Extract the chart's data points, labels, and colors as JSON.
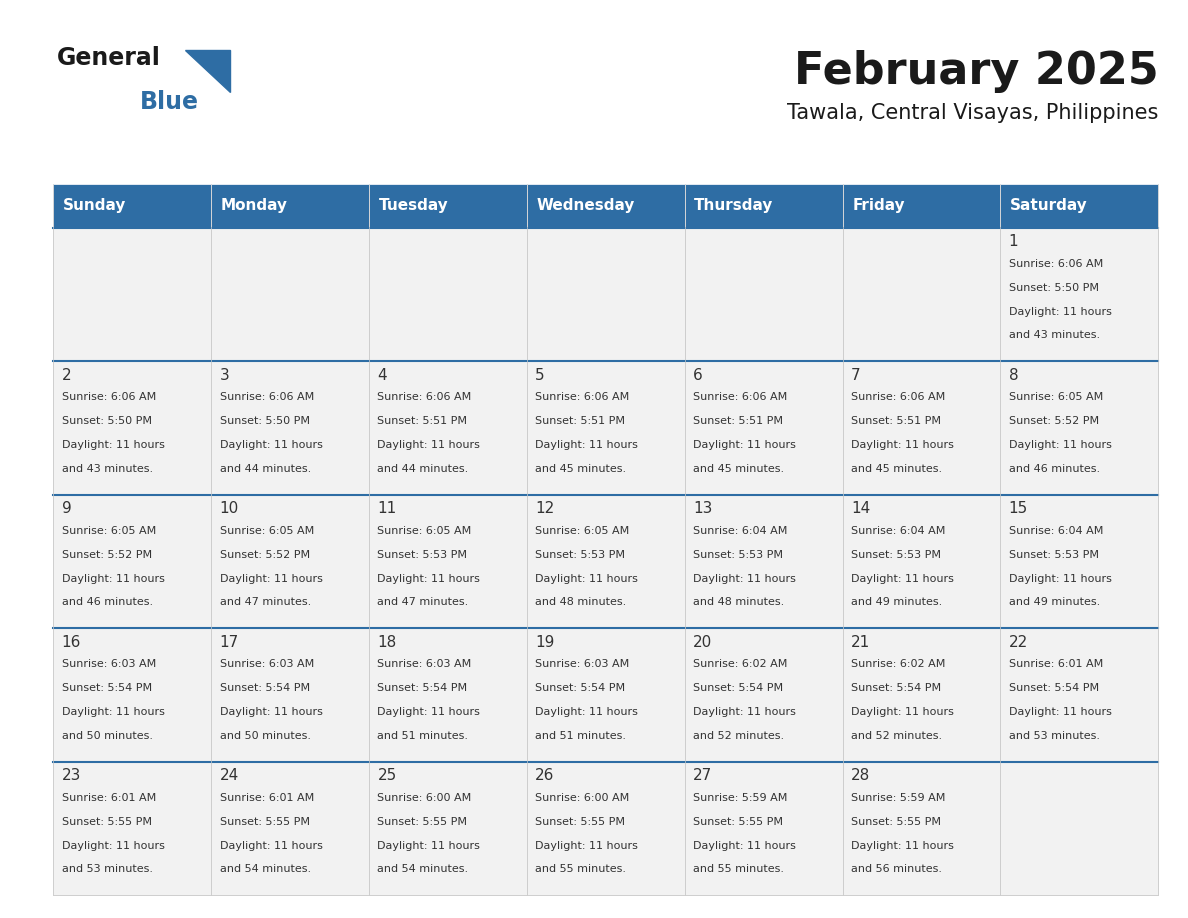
{
  "title": "February 2025",
  "subtitle": "Tawala, Central Visayas, Philippines",
  "days_of_week": [
    "Sunday",
    "Monday",
    "Tuesday",
    "Wednesday",
    "Thursday",
    "Friday",
    "Saturday"
  ],
  "header_bg": "#2E6DA4",
  "header_text": "#FFFFFF",
  "cell_bg_light": "#F2F2F2",
  "text_color": "#333333",
  "border_color": "#2E6DA4",
  "calendar_data": [
    [
      null,
      null,
      null,
      null,
      null,
      null,
      {
        "day": 1,
        "sunrise": "6:06 AM",
        "sunset": "5:50 PM",
        "daylight": "11 hours and 43 minutes."
      }
    ],
    [
      {
        "day": 2,
        "sunrise": "6:06 AM",
        "sunset": "5:50 PM",
        "daylight": "11 hours and 43 minutes."
      },
      {
        "day": 3,
        "sunrise": "6:06 AM",
        "sunset": "5:50 PM",
        "daylight": "11 hours and 44 minutes."
      },
      {
        "day": 4,
        "sunrise": "6:06 AM",
        "sunset": "5:51 PM",
        "daylight": "11 hours and 44 minutes."
      },
      {
        "day": 5,
        "sunrise": "6:06 AM",
        "sunset": "5:51 PM",
        "daylight": "11 hours and 45 minutes."
      },
      {
        "day": 6,
        "sunrise": "6:06 AM",
        "sunset": "5:51 PM",
        "daylight": "11 hours and 45 minutes."
      },
      {
        "day": 7,
        "sunrise": "6:06 AM",
        "sunset": "5:51 PM",
        "daylight": "11 hours and 45 minutes."
      },
      {
        "day": 8,
        "sunrise": "6:05 AM",
        "sunset": "5:52 PM",
        "daylight": "11 hours and 46 minutes."
      }
    ],
    [
      {
        "day": 9,
        "sunrise": "6:05 AM",
        "sunset": "5:52 PM",
        "daylight": "11 hours and 46 minutes."
      },
      {
        "day": 10,
        "sunrise": "6:05 AM",
        "sunset": "5:52 PM",
        "daylight": "11 hours and 47 minutes."
      },
      {
        "day": 11,
        "sunrise": "6:05 AM",
        "sunset": "5:53 PM",
        "daylight": "11 hours and 47 minutes."
      },
      {
        "day": 12,
        "sunrise": "6:05 AM",
        "sunset": "5:53 PM",
        "daylight": "11 hours and 48 minutes."
      },
      {
        "day": 13,
        "sunrise": "6:04 AM",
        "sunset": "5:53 PM",
        "daylight": "11 hours and 48 minutes."
      },
      {
        "day": 14,
        "sunrise": "6:04 AM",
        "sunset": "5:53 PM",
        "daylight": "11 hours and 49 minutes."
      },
      {
        "day": 15,
        "sunrise": "6:04 AM",
        "sunset": "5:53 PM",
        "daylight": "11 hours and 49 minutes."
      }
    ],
    [
      {
        "day": 16,
        "sunrise": "6:03 AM",
        "sunset": "5:54 PM",
        "daylight": "11 hours and 50 minutes."
      },
      {
        "day": 17,
        "sunrise": "6:03 AM",
        "sunset": "5:54 PM",
        "daylight": "11 hours and 50 minutes."
      },
      {
        "day": 18,
        "sunrise": "6:03 AM",
        "sunset": "5:54 PM",
        "daylight": "11 hours and 51 minutes."
      },
      {
        "day": 19,
        "sunrise": "6:03 AM",
        "sunset": "5:54 PM",
        "daylight": "11 hours and 51 minutes."
      },
      {
        "day": 20,
        "sunrise": "6:02 AM",
        "sunset": "5:54 PM",
        "daylight": "11 hours and 52 minutes."
      },
      {
        "day": 21,
        "sunrise": "6:02 AM",
        "sunset": "5:54 PM",
        "daylight": "11 hours and 52 minutes."
      },
      {
        "day": 22,
        "sunrise": "6:01 AM",
        "sunset": "5:54 PM",
        "daylight": "11 hours and 53 minutes."
      }
    ],
    [
      {
        "day": 23,
        "sunrise": "6:01 AM",
        "sunset": "5:55 PM",
        "daylight": "11 hours and 53 minutes."
      },
      {
        "day": 24,
        "sunrise": "6:01 AM",
        "sunset": "5:55 PM",
        "daylight": "11 hours and 54 minutes."
      },
      {
        "day": 25,
        "sunrise": "6:00 AM",
        "sunset": "5:55 PM",
        "daylight": "11 hours and 54 minutes."
      },
      {
        "day": 26,
        "sunrise": "6:00 AM",
        "sunset": "5:55 PM",
        "daylight": "11 hours and 55 minutes."
      },
      {
        "day": 27,
        "sunrise": "5:59 AM",
        "sunset": "5:55 PM",
        "daylight": "11 hours and 55 minutes."
      },
      {
        "day": 28,
        "sunrise": "5:59 AM",
        "sunset": "5:55 PM",
        "daylight": "11 hours and 56 minutes."
      },
      null
    ]
  ],
  "logo_text_general": "General",
  "logo_text_blue": "Blue",
  "logo_color_general": "#1a1a1a",
  "logo_color_blue": "#2E6DA4",
  "logo_triangle_color": "#2E6DA4"
}
